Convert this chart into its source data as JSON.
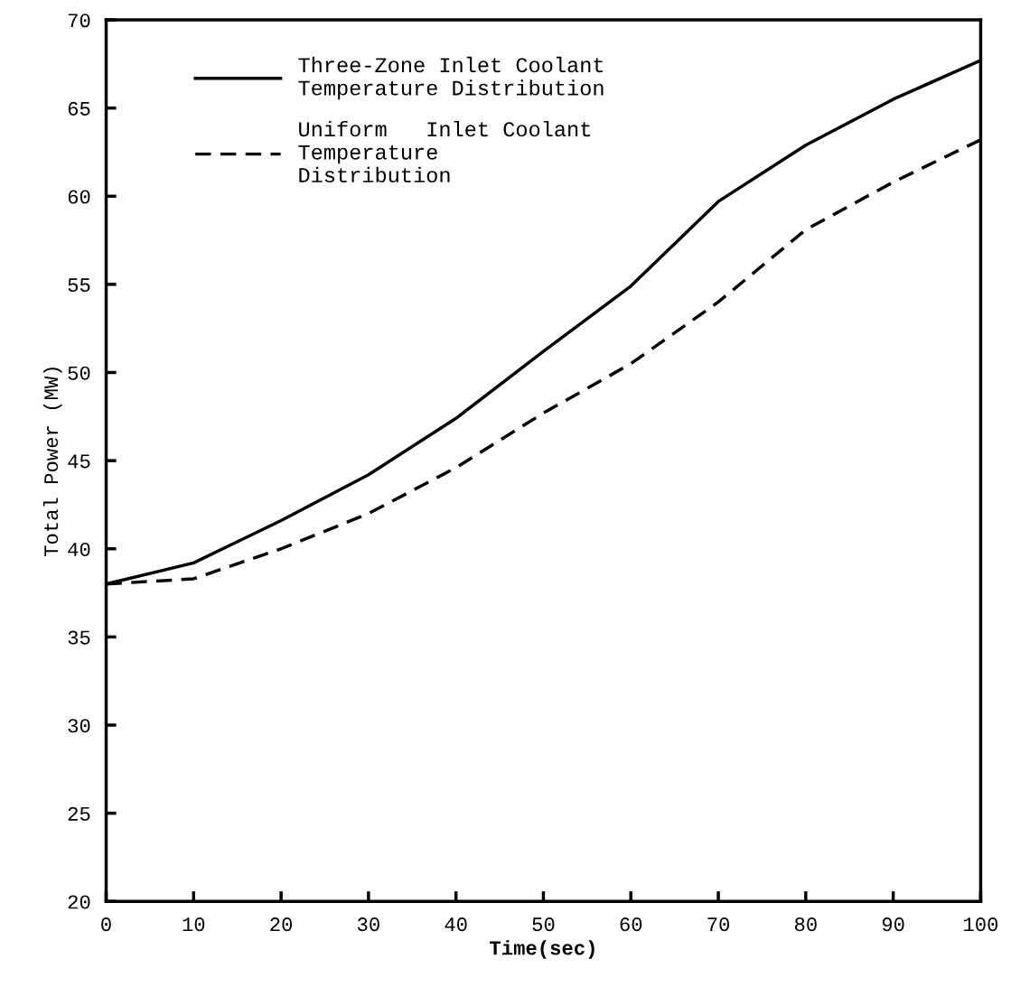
{
  "chart_data": {
    "type": "line",
    "xlabel": "Time(sec)",
    "ylabel": "Total Power (MW)",
    "xlim": [
      0,
      100
    ],
    "xticks": [
      0,
      10,
      20,
      30,
      40,
      50,
      60,
      70,
      80,
      90,
      100
    ],
    "ylim": [
      20,
      70
    ],
    "yticks": [
      20,
      25,
      30,
      35,
      40,
      45,
      50,
      55,
      60,
      65,
      70
    ],
    "grid": false,
    "legend": "top left",
    "marker": "none",
    "series": [
      {
        "name": "Three-Zone Inlet Coolant\nTemperature Distribution",
        "color": "#000000",
        "line_style": "solid",
        "x": [
          0,
          10,
          20,
          30,
          40,
          50,
          60,
          65,
          70,
          80,
          90,
          100
        ],
        "values": [
          38.0,
          39.2,
          41.6,
          44.2,
          47.4,
          51.2,
          54.9,
          57.3,
          59.7,
          62.9,
          65.5,
          67.7
        ]
      },
      {
        "name": "Uniform   Inlet Coolant\nTemperature\nDistribution",
        "color": "#000000",
        "line_style": "dashed",
        "x": [
          0,
          10,
          20,
          30,
          40,
          50,
          60,
          70,
          80,
          90,
          100
        ],
        "values": [
          38.0,
          38.3,
          40.0,
          42.0,
          44.6,
          47.7,
          50.5,
          54.0,
          58.1,
          60.8,
          63.2
        ]
      }
    ]
  }
}
